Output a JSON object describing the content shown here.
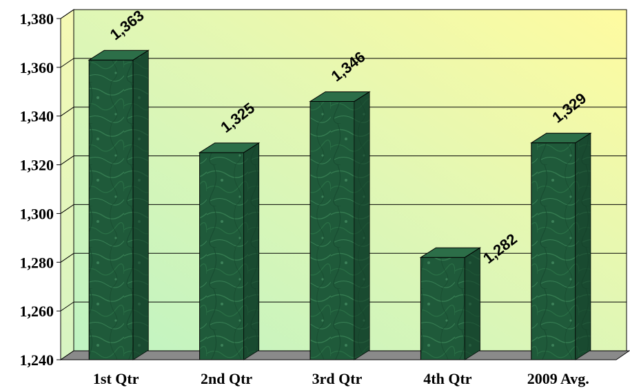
{
  "chart_data": {
    "type": "bar",
    "title": "",
    "xlabel": "",
    "ylabel": "",
    "categories": [
      "1st Qtr",
      "2nd Qtr",
      "3rd Qtr",
      "4th Qtr",
      "2009 Avg."
    ],
    "values": [
      1363,
      1325,
      1346,
      1282,
      1329
    ],
    "data_labels": [
      "1,363",
      "1,325",
      "1,346",
      "1,282",
      "1,329"
    ],
    "ylim": [
      1240,
      1380
    ],
    "yticks": [
      1240,
      1260,
      1280,
      1300,
      1320,
      1340,
      1360,
      1380
    ],
    "ytick_labels": [
      "1,240",
      "1,260",
      "1,280",
      "1,300",
      "1,320",
      "1,340",
      "1,360",
      "1,380"
    ],
    "grid": true,
    "legend": "none",
    "bar_style": "3d-green-marble",
    "colors": {
      "bar_front": "#1f5a3a",
      "bar_side": "#143d27",
      "bar_top": "#2c6e48",
      "wall_left": "#c8f5c0",
      "wall_right": "#fdfca8",
      "floor": "#8a8a8a",
      "grid": "#000000"
    }
  }
}
